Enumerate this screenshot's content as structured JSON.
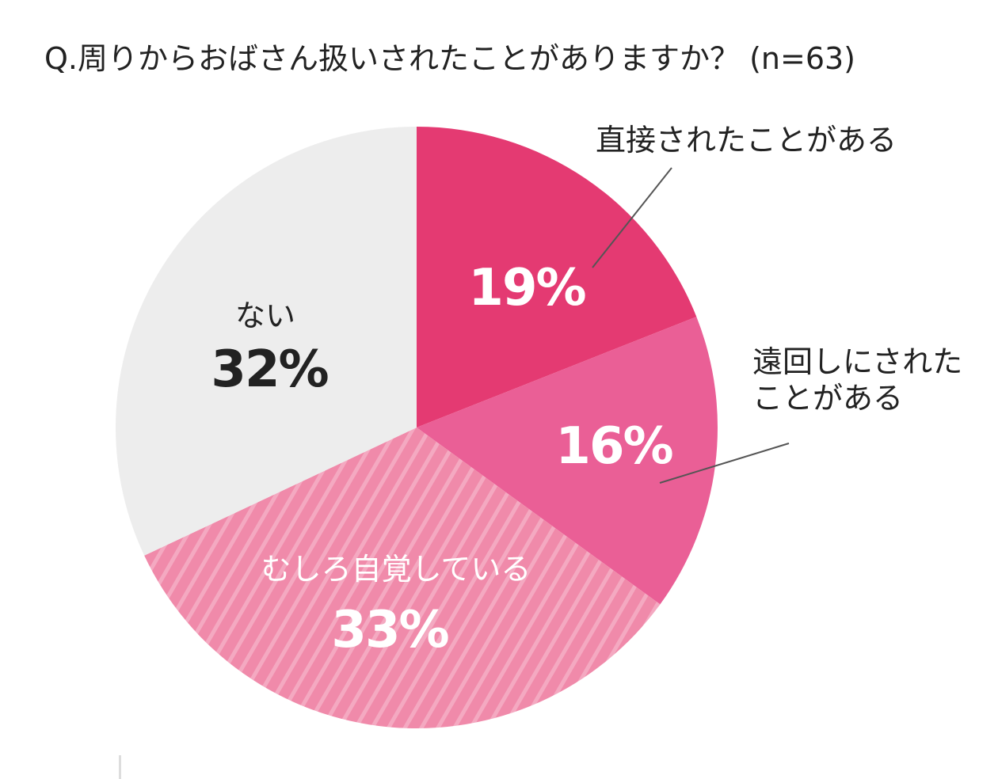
{
  "chart_data": {
    "type": "pie",
    "title": "Q.周りからおばさん扱いされたことがありますか？ (n=63)",
    "slices": [
      {
        "label": "直接されたことがある",
        "label_lines": [
          "直接されたことがある"
        ],
        "value": 19,
        "value_label": "19%",
        "color": "#e43a72",
        "pattern": "solid",
        "label_placement": "outside"
      },
      {
        "label": "遠回しにされたことがある",
        "label_lines": [
          "遠回しにされた",
          "ことがある"
        ],
        "value": 16,
        "value_label": "16%",
        "color": "#ea5f96",
        "pattern": "solid",
        "label_placement": "outside"
      },
      {
        "label": "むしろ自覚している",
        "label_lines": [
          "むしろ自覚している"
        ],
        "value": 33,
        "value_label": "33%",
        "color": "#f08aaa",
        "pattern": "diagonal-stripes",
        "label_placement": "inside"
      },
      {
        "label": "ない",
        "label_lines": [
          "ない"
        ],
        "value": 32,
        "value_label": "32%",
        "color": "#ededed",
        "pattern": "solid",
        "label_placement": "inside"
      }
    ],
    "start_angle": "12 o'clock",
    "direction": "clockwise",
    "legend": "none"
  }
}
